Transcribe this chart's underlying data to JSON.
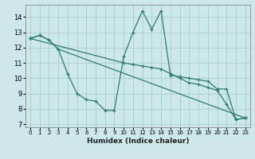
{
  "xlabel": "Humidex (Indice chaleur)",
  "bg_color": "#cce8e8",
  "line_color": "#2e7b6b",
  "grid_color": "#aacccc",
  "xlim": [
    -0.5,
    23.5
  ],
  "ylim": [
    6.8,
    14.8
  ],
  "yticks": [
    7,
    8,
    9,
    10,
    11,
    12,
    13,
    14
  ],
  "xticks": [
    0,
    1,
    2,
    3,
    4,
    5,
    6,
    7,
    8,
    9,
    10,
    11,
    12,
    13,
    14,
    15,
    16,
    17,
    18,
    19,
    20,
    21,
    22,
    23
  ],
  "series": [
    {
      "x": [
        0,
        1,
        2,
        3,
        4,
        5,
        6,
        7,
        8,
        9,
        10,
        11,
        12,
        13,
        14,
        15,
        16,
        17,
        18,
        19,
        20,
        21,
        22,
        23
      ],
      "y": [
        12.6,
        12.8,
        12.5,
        11.9,
        10.3,
        9.0,
        8.6,
        8.5,
        7.9,
        7.9,
        11.4,
        13.0,
        14.4,
        13.2,
        14.4,
        10.2,
        10.1,
        10.0,
        9.9,
        9.8,
        9.3,
        9.3,
        7.3,
        7.4
      ]
    },
    {
      "x": [
        0,
        1,
        2,
        3,
        23
      ],
      "y": [
        12.6,
        12.8,
        12.5,
        11.9,
        7.4
      ]
    },
    {
      "x": [
        0,
        10,
        11,
        12,
        13,
        14,
        15,
        16,
        17,
        18,
        19,
        20,
        21,
        22,
        23
      ],
      "y": [
        12.6,
        11.0,
        10.9,
        10.8,
        10.7,
        10.6,
        10.3,
        10.0,
        9.7,
        9.6,
        9.4,
        9.2,
        8.3,
        7.3,
        7.4
      ]
    }
  ]
}
